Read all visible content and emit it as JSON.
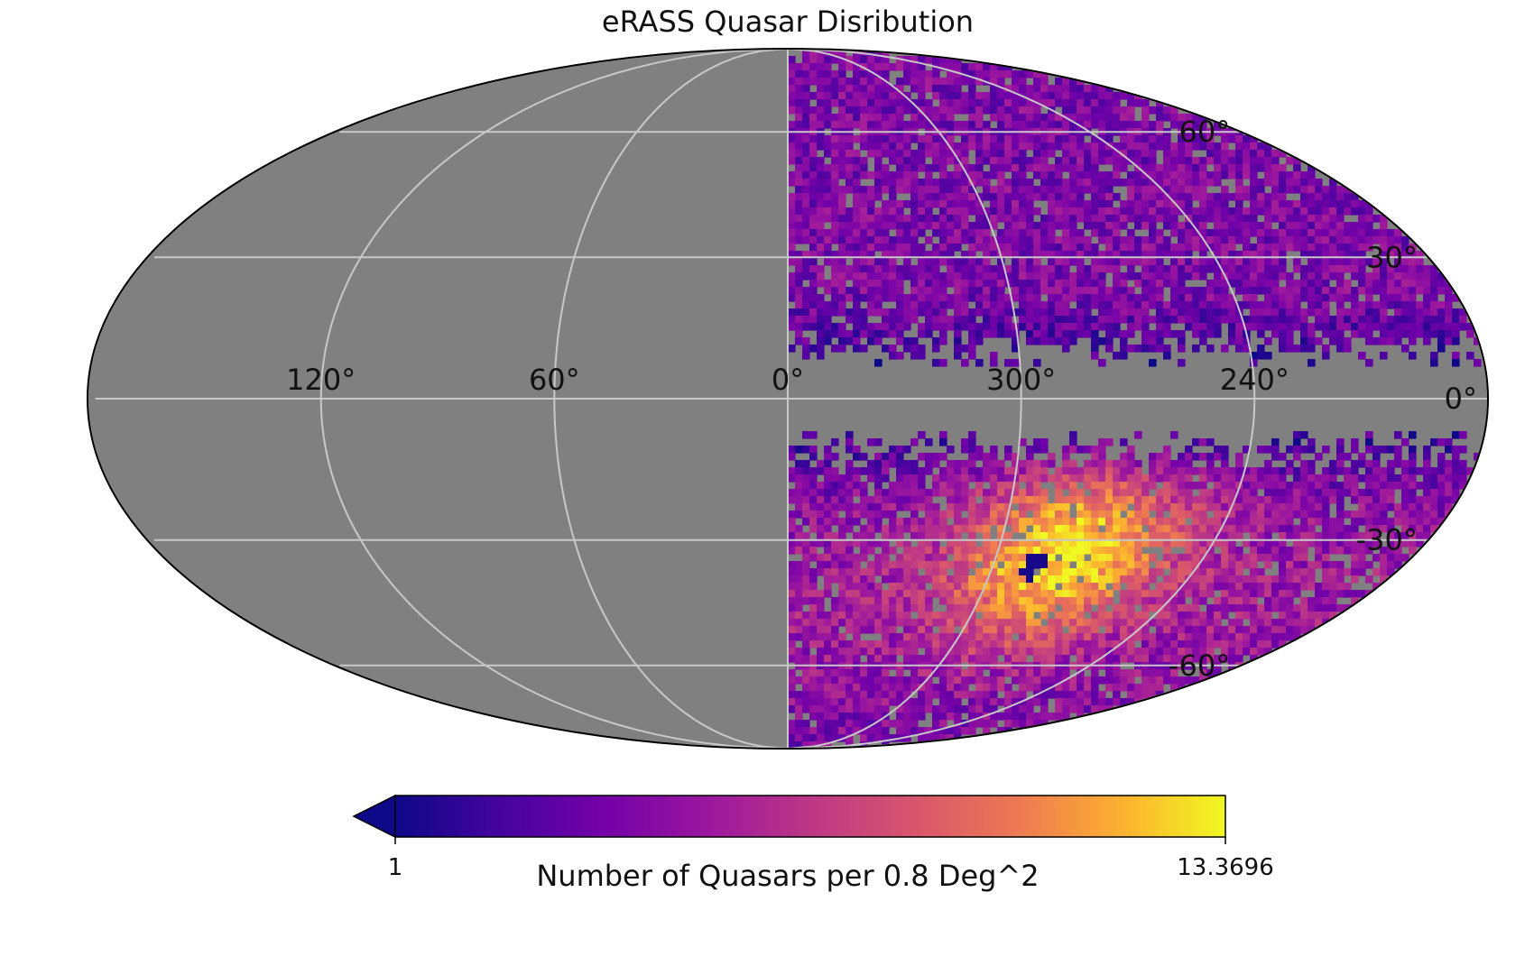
{
  "chart_data": {
    "type": "heatmap",
    "projection": "mollweide",
    "title": "eRASS Quasar Disribution",
    "lon_ticks": [
      "120°",
      "60°",
      "0°",
      "300°",
      "240°"
    ],
    "lat_ticks": [
      "60°",
      "30°",
      "0°",
      "-30°",
      "-60°"
    ],
    "lon_tick_values": [
      120,
      60,
      0,
      300,
      240
    ],
    "lat_tick_values": [
      60,
      30,
      0,
      -30,
      -60
    ],
    "lon_grid_values": [
      180,
      120,
      60,
      0,
      -60,
      -120,
      -180
    ],
    "lat_grid_values": [
      60,
      30,
      0,
      -30,
      -60
    ],
    "coverage": "Data only in the western half of the map (longitude 0° to 180° on the right side); eastern half masked. A band near latitude 0° is masked.",
    "masked_color": "#808080",
    "grid": true,
    "hotspot": {
      "lon": 280,
      "lat": -33,
      "value": 13.37
    },
    "colorbar": {
      "label": "Number of Quasars per  0.8 Deg^2",
      "min_label": "1",
      "max_label": "13.3696",
      "min": 1,
      "max": 13.3696,
      "colormap": "plasma",
      "extend": "min"
    }
  }
}
